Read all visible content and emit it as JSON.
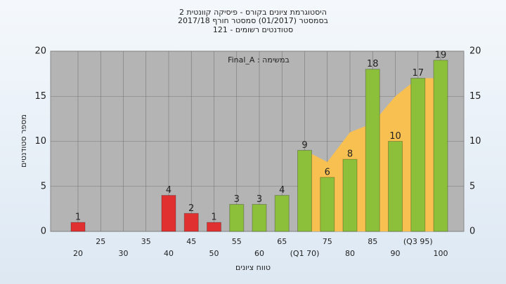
{
  "chart_data": {
    "type": "bar",
    "title": [
      "היסטוגרמת ציונים בקורס - פיסיקה קוונטית 2",
      "בסמסטר  (01/2017)  סמסטר חורף 2017/18",
      "סטודנטים רשומים - 121"
    ],
    "annotation": "Final_A : במשימה",
    "xlabel": "טווח ציונים",
    "ylabel": "מספר סטודנטים",
    "categories": [
      "20",
      "25",
      "30",
      "35",
      "40",
      "45",
      "50",
      "55",
      "60",
      "65",
      "(Q1 70)",
      "75",
      "80",
      "85",
      "90",
      "(Q3 95)",
      "100"
    ],
    "values": [
      1,
      0,
      0,
      0,
      4,
      2,
      1,
      3,
      3,
      4,
      9,
      6,
      8,
      18,
      10,
      17,
      19
    ],
    "colors": [
      "#e03030",
      "#e03030",
      "#e03030",
      "#e03030",
      "#e03030",
      "#e03030",
      "#e03030",
      "#8cbf3a",
      "#8cbf3a",
      "#8cbf3a",
      "#8cbf3a",
      "#8cbf3a",
      "#8cbf3a",
      "#8cbf3a",
      "#8cbf3a",
      "#8cbf3a",
      "#8cbf3a"
    ],
    "area": {
      "color": "#f8c050",
      "values": [
        null,
        null,
        null,
        null,
        null,
        null,
        null,
        null,
        null,
        null,
        9,
        7.7,
        11,
        12,
        15,
        17,
        17
      ]
    },
    "ylim": [
      0,
      20
    ],
    "yticks": [
      0,
      5,
      10,
      15,
      20
    ],
    "grid": true
  }
}
